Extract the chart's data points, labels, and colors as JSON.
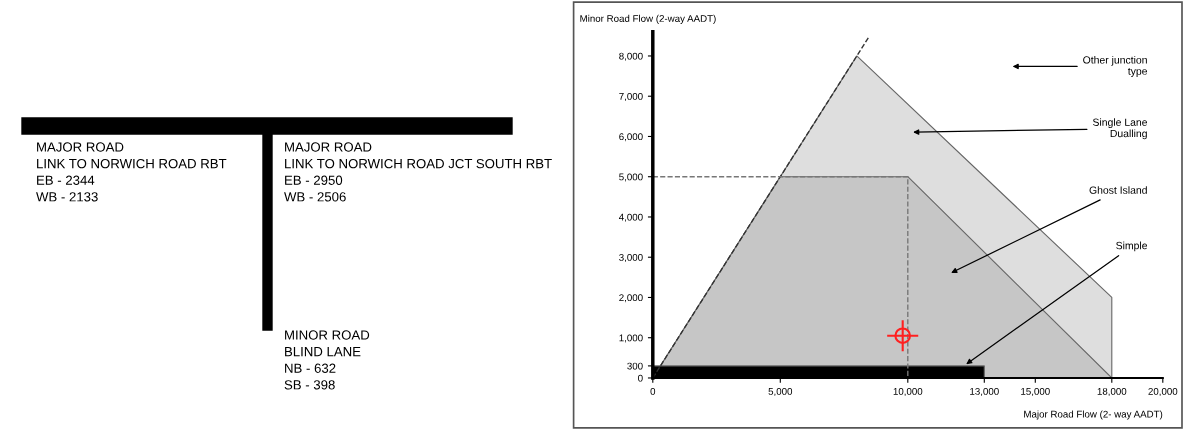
{
  "chart_data": [
    {
      "type": "other",
      "annotations": [
        "MAJOR ROAD\nLINK TO NORWICH ROAD RBT\nEB - 2344\nWB - 2133",
        "MAJOR ROAD\nLINK TO NORWICH ROAD JCT SOUTH RBT\nEB - 2950\nWB - 2506",
        "MINOR ROAD\nBLIND LANE\nNB - 632\nSB - 398"
      ]
    },
    {
      "type": "area",
      "xlabel": "Major Road Flow (2- way AADT)",
      "ylabel": "Minor Road Flow (2-way AADT)",
      "grid": false,
      "legend": false,
      "xlim": [
        0,
        20000
      ],
      "ylim": [
        0,
        8600
      ],
      "xticks": [
        0,
        {
          "value": 5000,
          "label": "5,000"
        },
        {
          "value": 10000,
          "label": "10,000"
        },
        {
          "value": 13000,
          "label": "13,000"
        },
        {
          "value": 15000,
          "label": "15,000"
        },
        {
          "value": 18000,
          "label": "18,000"
        },
        {
          "value": 20000,
          "label": "20,000"
        }
      ],
      "yticks": [
        0,
        300,
        {
          "value": 1000,
          "label": "1,000"
        },
        {
          "value": 2000,
          "label": "2,000"
        },
        {
          "value": 3000,
          "label": "3,000"
        },
        {
          "value": 4000,
          "label": "4,000"
        },
        {
          "value": 5000,
          "label": "5,000"
        },
        {
          "value": 6000,
          "label": "6,000"
        },
        {
          "value": 7000,
          "label": "7,000"
        },
        {
          "value": 8000,
          "label": "8,000"
        }
      ],
      "series": [
        {
          "type": "area",
          "color": "#dedede",
          "x": [
            0,
            8000,
            18000
          ],
          "values": [
            0,
            8000,
            2000
          ]
        },
        {
          "type": "area",
          "color": "#c6c6c6",
          "x": [
            0,
            5000,
            10000,
            18000
          ],
          "values": [
            0,
            5000,
            5000,
            0
          ]
        },
        {
          "type": "area",
          "color": "#000000",
          "x": [
            0,
            13000
          ],
          "values": [
            300,
            300
          ]
        },
        {
          "type": "line",
          "color": "#333333",
          "line_style": "dashed",
          "x": [
            0,
            8500
          ],
          "values": [
            0,
            8500
          ]
        },
        {
          "type": "line",
          "color": "#777777",
          "line_style": "dashed",
          "x": [
            0,
            10000,
            10000
          ],
          "values": [
            5000,
            5000,
            0
          ]
        },
        {
          "type": "scatter",
          "color": "#ff2020",
          "marker": "circle",
          "x": [
            9800
          ],
          "values": [
            1050
          ]
        }
      ],
      "annotations": [
        "Other junction\ntype",
        "Single Lane\nDualling",
        "Ghost Island",
        {
          "text": "Simple",
          "x": 12200,
          "y": 300
        }
      ]
    }
  ]
}
